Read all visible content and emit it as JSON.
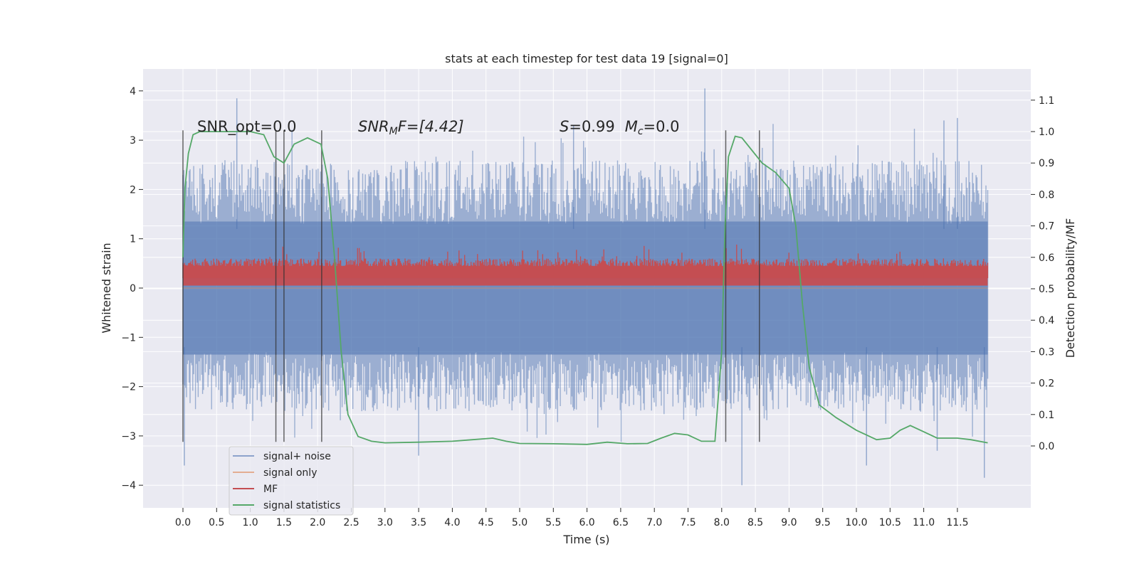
{
  "chart_data": {
    "type": "line",
    "title": "stats at each timestep for test data 19 [signal=0]",
    "xlabel": "Time (s)",
    "ylabel": "Whitened strain",
    "ylabel_right": "Detection probability/MF",
    "xlim": [
      -0.5,
      12.67
    ],
    "ylim": [
      -4.4,
      4.45
    ],
    "ylim_right": [
      -0.2,
      1.2
    ],
    "x_ticks": [
      "0.0",
      "0.5",
      "1.0",
      "1.5",
      "2.0",
      "2.5",
      "3.0",
      "3.5",
      "4.0",
      "4.5",
      "5.0",
      "5.5",
      "6.0",
      "6.5",
      "7.0",
      "7.5",
      "8.0",
      "8.5",
      "9.0",
      "9.5",
      "10.0",
      "10.5",
      "11.0",
      "11.5"
    ],
    "y_ticks": [
      "−4",
      "−3",
      "−2",
      "−1",
      "0",
      "1",
      "2",
      "3",
      "4"
    ],
    "y_right_ticks": [
      "0.0",
      "0.1",
      "0.2",
      "0.3",
      "0.4",
      "0.5",
      "0.6",
      "0.7",
      "0.8",
      "0.9",
      "1.0",
      "1.1"
    ],
    "grid": true,
    "legend_position": "lower-left",
    "annotations": {
      "snr_opt": "SNR_opt=0.0",
      "snr_mf_prefix": "SNR",
      "snr_mf_sub": "M",
      "snr_mf_rest": "F=[4.42]",
      "s_sym": "S",
      "s_val": "=0.99",
      "mc_sym": "M",
      "mc_sub": "c",
      "mc_val": "=0.0"
    },
    "vertical_lines_x": [
      0.0,
      1.38,
      1.5,
      2.06,
      8.06,
      8.56
    ],
    "series": [
      {
        "name": "signal+ noise",
        "color": "#4c72b0",
        "opacity": 0.5,
        "envelope": {
          "x_range": [
            0.0,
            11.95
          ],
          "upper_typical": 2.6,
          "upper_peaks": [
            3.85,
            4.05,
            3.45
          ],
          "lower_typical": -2.5,
          "lower_peaks": [
            -3.6,
            -4.0,
            -3.85
          ]
        }
      },
      {
        "name": "signal only",
        "color": "#dd8452",
        "opacity": 0.5,
        "values_note": "flat at 0"
      },
      {
        "name": "MF",
        "color": "#c44e52",
        "envelope": {
          "x_range": [
            0.0,
            11.95
          ],
          "lower": 0.05,
          "upper_typical": 0.6,
          "upper_max": 1.0
        }
      },
      {
        "name": "signal statistics",
        "color": "#55a868",
        "x": [
          0.0,
          0.03,
          0.08,
          0.15,
          0.25,
          0.5,
          1.0,
          1.2,
          1.35,
          1.5,
          1.65,
          1.85,
          2.05,
          2.15,
          2.25,
          2.35,
          2.45,
          2.6,
          2.8,
          3.0,
          3.5,
          4.0,
          4.3,
          4.6,
          4.8,
          5.0,
          5.5,
          6.0,
          6.3,
          6.6,
          6.9,
          7.1,
          7.3,
          7.5,
          7.7,
          7.9,
          8.0,
          8.05,
          8.1,
          8.2,
          8.3,
          8.45,
          8.6,
          8.8,
          9.0,
          9.1,
          9.2,
          9.3,
          9.45,
          9.7,
          10.0,
          10.3,
          10.5,
          10.65,
          10.8,
          11.0,
          11.2,
          11.5,
          11.7,
          11.95
        ],
        "values": [
          0.6,
          0.82,
          0.93,
          0.99,
          1.0,
          1.0,
          1.0,
          0.99,
          0.92,
          0.9,
          0.96,
          0.98,
          0.96,
          0.85,
          0.6,
          0.3,
          0.1,
          0.03,
          0.015,
          0.01,
          0.012,
          0.015,
          0.02,
          0.025,
          0.015,
          0.008,
          0.007,
          0.005,
          0.012,
          0.007,
          0.008,
          0.025,
          0.04,
          0.035,
          0.015,
          0.015,
          0.3,
          0.7,
          0.92,
          0.985,
          0.98,
          0.94,
          0.9,
          0.87,
          0.82,
          0.7,
          0.45,
          0.25,
          0.13,
          0.09,
          0.05,
          0.02,
          0.025,
          0.05,
          0.065,
          0.045,
          0.025,
          0.025,
          0.02,
          0.01
        ]
      }
    ]
  }
}
